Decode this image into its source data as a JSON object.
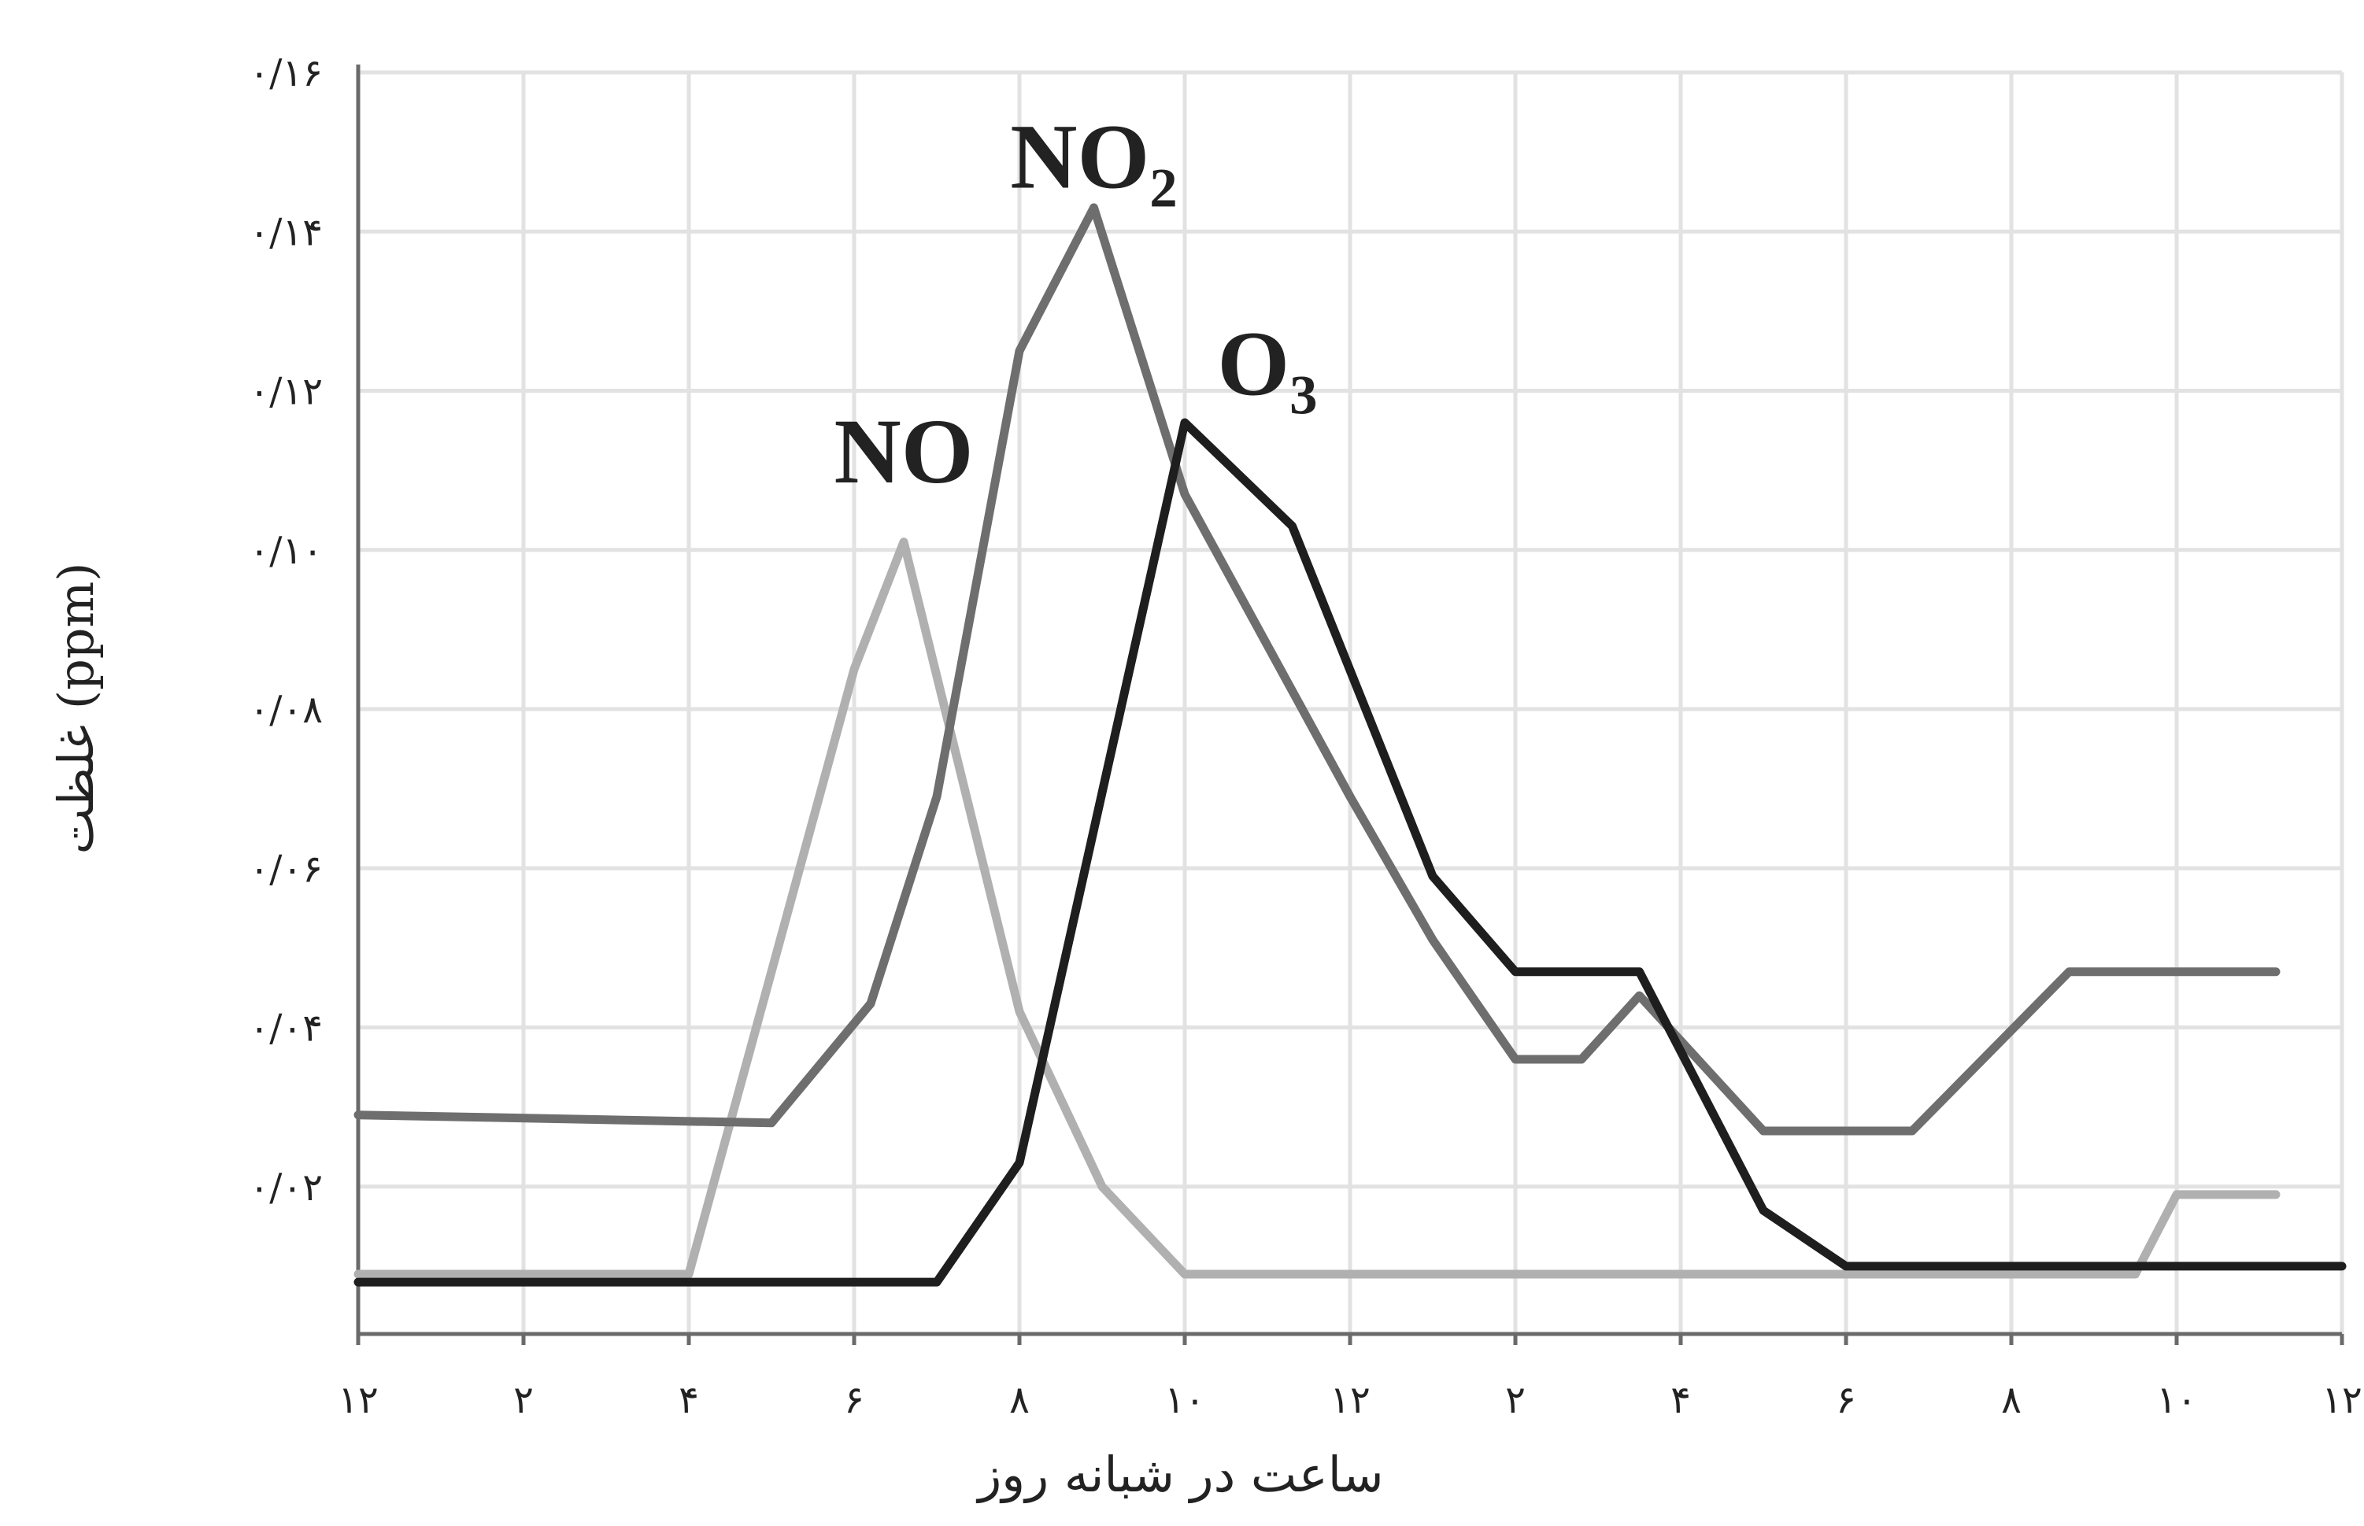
{
  "colors": {
    "background": "#ffffff",
    "grid": "#e2e2e2",
    "axis": "#6a6a6a",
    "no": "#b0b0b0",
    "no2": "#6e6e6e",
    "o3": "#1e1e1e"
  },
  "chart_data": {
    "type": "line",
    "title": "",
    "xlabel": "ساعت در شبانه روز",
    "ylabel": "غلظت (ppm)",
    "x_range": [
      0,
      24
    ],
    "ylim": [
      0,
      0.16
    ],
    "grid": true,
    "legend": "inline labels near peaks",
    "x_ticks": [
      {
        "x": 0,
        "label": "۱۲"
      },
      {
        "x": 2,
        "label": "۲"
      },
      {
        "x": 4,
        "label": "۴"
      },
      {
        "x": 6,
        "label": "۶"
      },
      {
        "x": 8,
        "label": "۸"
      },
      {
        "x": 10,
        "label": "۱۰"
      },
      {
        "x": 12,
        "label": "۱۲"
      },
      {
        "x": 14,
        "label": "۲"
      },
      {
        "x": 16,
        "label": "۴"
      },
      {
        "x": 18,
        "label": "۶"
      },
      {
        "x": 20,
        "label": "۸"
      },
      {
        "x": 22,
        "label": "۱۰"
      },
      {
        "x": 24,
        "label": "۱۲"
      }
    ],
    "y_ticks": [
      {
        "y": 0.02,
        "label": "۰/۰۲"
      },
      {
        "y": 0.04,
        "label": "۰/۰۴"
      },
      {
        "y": 0.06,
        "label": "۰/۰۶"
      },
      {
        "y": 0.08,
        "label": "۰/۰۸"
      },
      {
        "y": 0.1,
        "label": "۰/۱۰"
      },
      {
        "y": 0.12,
        "label": "۰/۱۲"
      },
      {
        "y": 0.14,
        "label": "۰/۱۴"
      },
      {
        "y": 0.16,
        "label": "۰/۱۶"
      }
    ],
    "series": [
      {
        "name": "NO",
        "color_key": "no",
        "label_at": [
          6.6,
          0.1085
        ],
        "points": [
          [
            0,
            0.009
          ],
          [
            4,
            0.009
          ],
          [
            6,
            0.085
          ],
          [
            6.6,
            0.101
          ],
          [
            8,
            0.042
          ],
          [
            9,
            0.02
          ],
          [
            10,
            0.009
          ],
          [
            21.5,
            0.009
          ],
          [
            22,
            0.019
          ],
          [
            23.2,
            0.019
          ]
        ]
      },
      {
        "name": "NO₂",
        "color_key": "no2",
        "label_at": [
          8.9,
          0.1455
        ],
        "points": [
          [
            0,
            0.029
          ],
          [
            5,
            0.028
          ],
          [
            6.2,
            0.043
          ],
          [
            7,
            0.069
          ],
          [
            8,
            0.125
          ],
          [
            8.9,
            0.143
          ],
          [
            10,
            0.107
          ],
          [
            12,
            0.069
          ],
          [
            13,
            0.051
          ],
          [
            14,
            0.036
          ],
          [
            14.8,
            0.036
          ],
          [
            15.5,
            0.044
          ],
          [
            17,
            0.027
          ],
          [
            18.8,
            0.027
          ],
          [
            20.7,
            0.047
          ],
          [
            23.2,
            0.047
          ]
        ]
      },
      {
        "name": "O₃",
        "color_key": "o3",
        "label_at": [
          11.0,
          0.1195
        ],
        "points": [
          [
            0,
            0.008
          ],
          [
            7,
            0.008
          ],
          [
            8,
            0.023
          ],
          [
            10,
            0.116
          ],
          [
            11.3,
            0.103
          ],
          [
            13,
            0.059
          ],
          [
            14,
            0.047
          ],
          [
            15.5,
            0.047
          ],
          [
            17,
            0.017
          ],
          [
            18,
            0.01
          ],
          [
            24,
            0.01
          ]
        ]
      }
    ]
  }
}
